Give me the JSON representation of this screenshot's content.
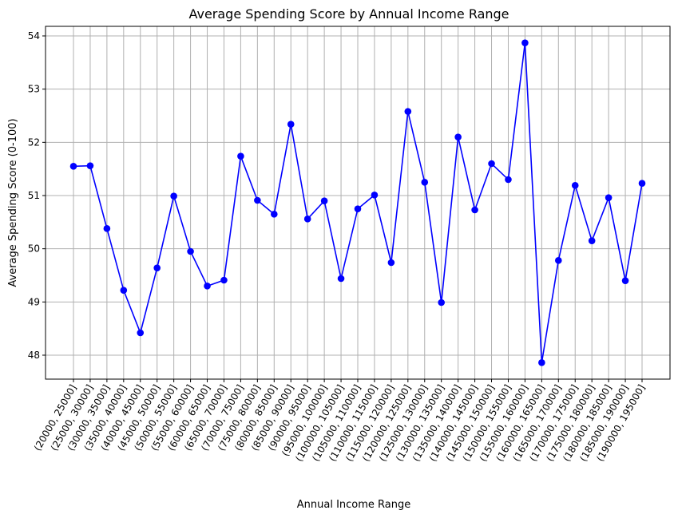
{
  "chart_data": {
    "type": "line",
    "title": "Average Spending Score by Annual Income Range",
    "xlabel": "Annual Income Range",
    "ylabel": "Average Spending Score (0-100)",
    "categories": [
      "(20000, 25000]",
      "(25000, 30000]",
      "(30000, 35000]",
      "(35000, 40000]",
      "(40000, 45000]",
      "(45000, 50000]",
      "(50000, 55000]",
      "(55000, 60000]",
      "(60000, 65000]",
      "(65000, 70000]",
      "(70000, 75000]",
      "(75000, 80000]",
      "(80000, 85000]",
      "(85000, 90000]",
      "(90000, 95000]",
      "(95000, 100000]",
      "(100000, 105000]",
      "(105000, 110000]",
      "(110000, 115000]",
      "(115000, 120000]",
      "(120000, 125000]",
      "(125000, 130000]",
      "(130000, 135000]",
      "(135000, 140000]",
      "(140000, 145000]",
      "(145000, 150000]",
      "(150000, 155000]",
      "(155000, 160000]",
      "(160000, 165000]",
      "(165000, 170000]",
      "(170000, 175000]",
      "(175000, 180000]",
      "(180000, 185000]",
      "(185000, 190000]",
      "(190000, 195000]"
    ],
    "values": [
      51.55,
      51.56,
      50.38,
      49.22,
      48.42,
      49.64,
      50.99,
      49.95,
      49.3,
      49.41,
      51.74,
      50.91,
      50.65,
      52.34,
      50.56,
      50.9,
      49.44,
      50.75,
      51.01,
      49.74,
      52.58,
      51.25,
      48.99,
      52.1,
      50.73,
      51.6,
      51.3,
      53.87,
      47.86,
      49.78,
      51.19,
      50.15,
      50.96,
      49.4,
      51.23
    ],
    "ylim": [
      47.55,
      54.18
    ],
    "yticks": [
      "48",
      "49",
      "50",
      "51",
      "52",
      "53",
      "54"
    ],
    "grid": true,
    "marker": "circle",
    "line_color": "#0000ff"
  }
}
